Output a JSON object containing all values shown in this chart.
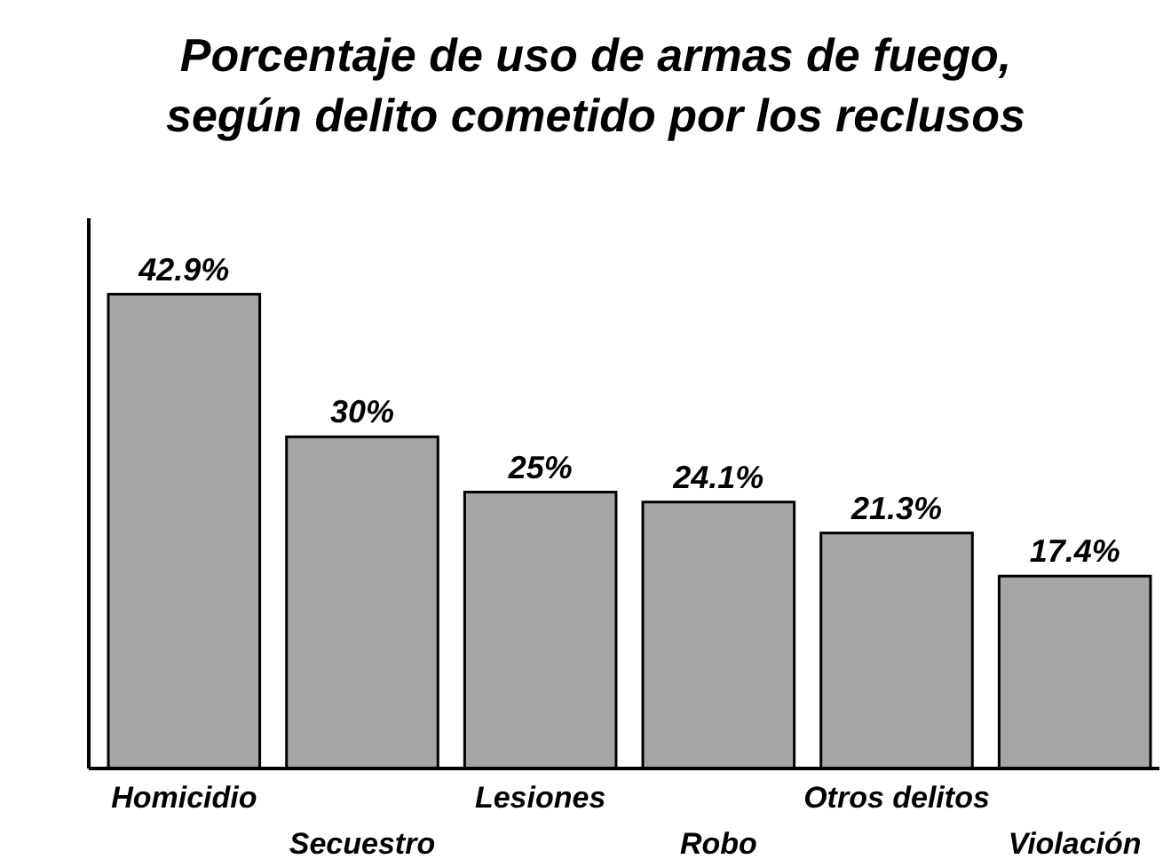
{
  "chart_data": {
    "type": "bar",
    "title": "Porcentaje de uso de armas de fuego,\nsegún delito cometido por los reclusos",
    "categories": [
      "Homicidio",
      "Secuestro",
      "Lesiones",
      "Robo",
      "Otros delitos",
      "Violación"
    ],
    "values": [
      42.9,
      30,
      25,
      24.1,
      21.3,
      17.4
    ],
    "value_labels": [
      "42.9%",
      "30%",
      "25%",
      "24.1%",
      "21.3%",
      "17.4%"
    ],
    "color": "#a6a6a6",
    "relative": false
  }
}
